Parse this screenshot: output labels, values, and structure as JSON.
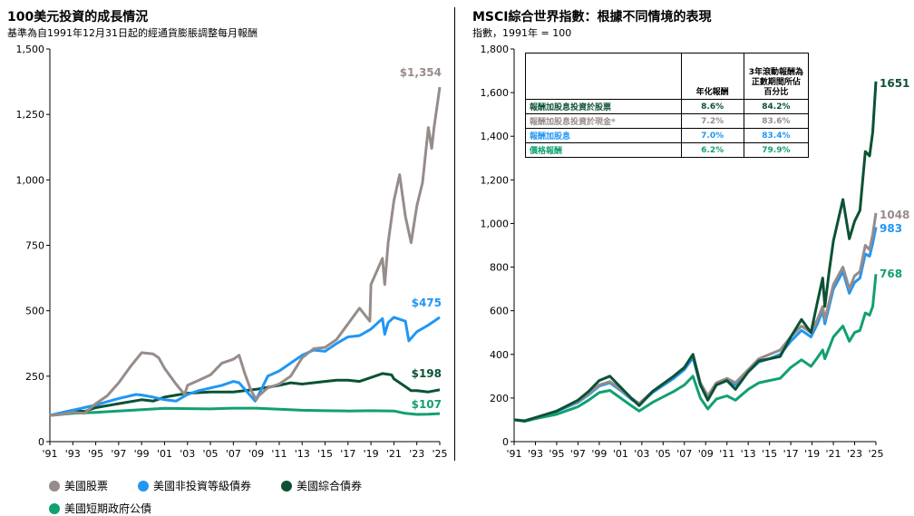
{
  "left_panel": {
    "title": "100美元投資的成長情況",
    "subtitle": "基準為自1991年12月31日起的經通貨膨脹調整每月報酬"
  },
  "right_panel": {
    "title": "MSCI綜合世界指數：根據不同情境的表現",
    "subtitle": "指數，1991年 = 100"
  },
  "legend": [
    {
      "label": "美國股票",
      "color": "#968c8a"
    },
    {
      "label": "美國非投資等級債券",
      "color": "#2196f3"
    },
    {
      "label": "美國綜合債券",
      "color": "#0b5233"
    },
    {
      "label": "美國短期政府公債",
      "color": "#12a070"
    }
  ],
  "table": {
    "headers": [
      "",
      "年化報酬",
      "3年滾動報酬為正數期間所佔百分比"
    ],
    "rows": [
      {
        "label": "報酬加股息投資於股票",
        "annual": "8.6%",
        "pct": "84.2%",
        "color": "#0b5233"
      },
      {
        "label": "報酬加股息投資於現金*",
        "annual": "7.2%",
        "pct": "83.6%",
        "color": "#968c8a"
      },
      {
        "label": "報酬加股息",
        "annual": "7.0%",
        "pct": "83.4%",
        "color": "#2196f3"
      },
      {
        "label": "價格報酬",
        "annual": "6.2%",
        "pct": "79.9%",
        "color": "#12a070"
      }
    ]
  },
  "chart_data": [
    {
      "type": "line",
      "title": "100美元投資的成長情況",
      "subtitle": "基準為自1991年12月31日起的經通貨膨脹調整每月報酬",
      "xlabel": "",
      "ylabel": "",
      "xlim": [
        1991,
        2025
      ],
      "ylim": [
        0,
        1500
      ],
      "x_ticks": [
        "'91",
        "'93",
        "'95",
        "'97",
        "'99",
        "'01",
        "'03",
        "'05",
        "'07",
        "'09",
        "'11",
        "'13",
        "'15",
        "'17",
        "'19",
        "'21",
        "'23",
        "'25"
      ],
      "y_ticks": [
        "0",
        "250",
        "500",
        "750",
        "1,000",
        "1,250",
        "1,500"
      ],
      "y_tick_values": [
        0,
        250,
        500,
        750,
        1000,
        1250,
        1500
      ],
      "grid": false,
      "legend_position": "bottom",
      "series": [
        {
          "name": "美國股票",
          "color": "#968c8a",
          "end_label": "$1,354",
          "x": [
            1991,
            1992,
            1993,
            1994,
            1995,
            1996,
            1997,
            1998,
            1999,
            2000,
            2000.5,
            2001,
            2002,
            2002.75,
            2003,
            2004,
            2005,
            2006,
            2007,
            2007.5,
            2008,
            2008.5,
            2009,
            2009.2,
            2010,
            2011,
            2012,
            2013,
            2014,
            2015,
            2016,
            2017,
            2018,
            2018.9,
            2019,
            2020,
            2020.2,
            2020.5,
            2021,
            2021.5,
            2022,
            2022.5,
            2023,
            2023.5,
            2024,
            2024.3,
            2024.5,
            2025
          ],
          "y": [
            100,
            104,
            112,
            108,
            145,
            175,
            225,
            285,
            340,
            335,
            320,
            280,
            220,
            180,
            215,
            235,
            255,
            300,
            315,
            330,
            260,
            200,
            160,
            175,
            205,
            220,
            250,
            320,
            355,
            360,
            390,
            450,
            510,
            460,
            600,
            700,
            600,
            760,
            920,
            1020,
            860,
            760,
            900,
            990,
            1200,
            1120,
            1200,
            1354
          ]
        },
        {
          "name": "美國非投資等級債券",
          "color": "#2196f3",
          "end_label": "$475",
          "x": [
            1991,
            1993,
            1995,
            1997,
            1998.5,
            1999,
            2000,
            2001,
            2002,
            2003,
            2004,
            2005,
            2006,
            2007,
            2007.5,
            2008,
            2008.9,
            2009.5,
            2010,
            2011,
            2012,
            2013,
            2014,
            2015,
            2016,
            2017,
            2018,
            2019,
            2020,
            2020.2,
            2020.5,
            2021,
            2022,
            2022.3,
            2023,
            2024,
            2025
          ],
          "y": [
            100,
            120,
            140,
            165,
            180,
            178,
            170,
            160,
            155,
            180,
            195,
            205,
            215,
            230,
            225,
            200,
            155,
            205,
            250,
            270,
            300,
            330,
            350,
            345,
            375,
            400,
            405,
            430,
            470,
            410,
            455,
            475,
            460,
            385,
            420,
            445,
            475
          ]
        },
        {
          "name": "美國綜合債券",
          "color": "#0b5233",
          "end_label": "$198",
          "x": [
            1991,
            1993,
            1994,
            1995,
            1997,
            1999,
            2000,
            2001,
            2003,
            2005,
            2007,
            2008,
            2009,
            2011,
            2012,
            2013,
            2015,
            2016,
            2017,
            2018,
            2019,
            2020,
            2020.8,
            2021,
            2022,
            2022.5,
            2023,
            2024,
            2025
          ],
          "y": [
            100,
            120,
            115,
            130,
            145,
            160,
            155,
            170,
            185,
            190,
            190,
            195,
            200,
            215,
            225,
            220,
            230,
            235,
            235,
            230,
            245,
            260,
            255,
            240,
            210,
            195,
            195,
            190,
            198
          ]
        },
        {
          "name": "美國短期政府公債",
          "color": "#12a070",
          "end_label": "$107",
          "x": [
            1991,
            1993,
            1995,
            1997,
            1999,
            2001,
            2003,
            2005,
            2007,
            2009,
            2011,
            2013,
            2015,
            2017,
            2019,
            2021,
            2022,
            2023,
            2024,
            2025
          ],
          "y": [
            100,
            108,
            112,
            117,
            122,
            127,
            126,
            125,
            128,
            128,
            124,
            120,
            118,
            117,
            118,
            117,
            108,
            104,
            105,
            107
          ]
        }
      ]
    },
    {
      "type": "line",
      "title": "MSCI綜合世界指數：根據不同情境的表現",
      "subtitle": "指數，1991年 = 100",
      "xlabel": "",
      "ylabel": "",
      "xlim": [
        1991,
        2025
      ],
      "ylim": [
        0,
        1800
      ],
      "x_ticks": [
        "'91",
        "'93",
        "'95",
        "'97",
        "'99",
        "'01",
        "'03",
        "'05",
        "'07",
        "'09",
        "'11",
        "'13",
        "'15",
        "'17",
        "'19",
        "'21",
        "'23",
        "'25"
      ],
      "y_ticks": [
        "0",
        "200",
        "400",
        "600",
        "800",
        "1,000",
        "1,200",
        "1,400",
        "1,600",
        "1,800"
      ],
      "y_tick_values": [
        0,
        200,
        400,
        600,
        800,
        1000,
        1200,
        1400,
        1600,
        1800
      ],
      "grid": false,
      "series": [
        {
          "name": "報酬加股息投資於股票",
          "color": "#0b5233",
          "end_label": "1651",
          "x": [
            1991,
            1992,
            1993,
            1995,
            1997,
            1998,
            1999,
            2000,
            2001,
            2002,
            2002.75,
            2004,
            2006,
            2007,
            2007.8,
            2008.5,
            2009.2,
            2010,
            2011,
            2011.8,
            2013,
            2014,
            2015,
            2016,
            2017,
            2018,
            2018.9,
            2019.5,
            2020,
            2020.2,
            2020.6,
            2021,
            2021.9,
            2022.5,
            2023,
            2023.5,
            2024,
            2024.4,
            2024.7,
            2025
          ],
          "y": [
            100,
            95,
            110,
            140,
            190,
            230,
            280,
            300,
            250,
            200,
            165,
            230,
            300,
            340,
            400,
            260,
            190,
            260,
            280,
            240,
            320,
            370,
            380,
            390,
            480,
            560,
            500,
            640,
            750,
            620,
            780,
            920,
            1110,
            930,
            1010,
            1060,
            1330,
            1310,
            1420,
            1651
          ]
        },
        {
          "name": "報酬加股息投資於現金*",
          "color": "#968c8a",
          "end_label": "1048",
          "x": [
            1991,
            1992,
            1993,
            1995,
            1997,
            1998,
            1999,
            2000,
            2001,
            2002,
            2002.75,
            2004,
            2006,
            2007,
            2007.8,
            2008.5,
            2009.2,
            2010,
            2011,
            2011.8,
            2013,
            2014,
            2015,
            2016,
            2017,
            2018,
            2018.9,
            2019.5,
            2020,
            2020.2,
            2020.6,
            2021,
            2021.9,
            2022.5,
            2023,
            2023.5,
            2024,
            2024.4,
            2024.7,
            2025
          ],
          "y": [
            100,
            95,
            110,
            140,
            185,
            220,
            260,
            275,
            240,
            200,
            175,
            230,
            300,
            340,
            400,
            270,
            210,
            270,
            290,
            270,
            330,
            380,
            400,
            420,
            480,
            530,
            500,
            560,
            620,
            560,
            640,
            720,
            800,
            700,
            760,
            780,
            900,
            880,
            950,
            1048
          ]
        },
        {
          "name": "報酬加股息",
          "color": "#2196f3",
          "end_label": "983",
          "x": [
            1991,
            1992,
            1993,
            1995,
            1997,
            1998,
            1999,
            2000,
            2001,
            2002,
            2002.75,
            2004,
            2006,
            2007,
            2007.8,
            2008.5,
            2009.2,
            2010,
            2011,
            2011.8,
            2013,
            2014,
            2015,
            2016,
            2017,
            2018,
            2018.9,
            2019.5,
            2020,
            2020.2,
            2020.6,
            2021,
            2021.9,
            2022.5,
            2023,
            2023.5,
            2024,
            2024.4,
            2024.7,
            2025
          ],
          "y": [
            100,
            95,
            110,
            138,
            180,
            215,
            255,
            270,
            235,
            195,
            170,
            225,
            290,
            330,
            385,
            260,
            200,
            260,
            280,
            260,
            320,
            365,
            380,
            400,
            460,
            510,
            480,
            540,
            600,
            540,
            620,
            700,
            780,
            680,
            730,
            750,
            860,
            850,
            910,
            983
          ]
        },
        {
          "name": "價格報酬",
          "color": "#12a070",
          "end_label": "768",
          "x": [
            1991,
            1992,
            1993,
            1995,
            1997,
            1998,
            1999,
            2000,
            2001,
            2002,
            2002.75,
            2004,
            2006,
            2007,
            2007.8,
            2008.5,
            2009.2,
            2010,
            2011,
            2011.8,
            2013,
            2014,
            2015,
            2016,
            2017,
            2018,
            2018.9,
            2019.5,
            2020,
            2020.2,
            2020.6,
            2021,
            2021.9,
            2022.5,
            2023,
            2023.5,
            2024,
            2024.4,
            2024.7,
            2025
          ],
          "y": [
            100,
            93,
            105,
            125,
            160,
            190,
            225,
            235,
            200,
            165,
            140,
            180,
            230,
            260,
            300,
            200,
            150,
            195,
            210,
            190,
            240,
            270,
            280,
            290,
            340,
            375,
            345,
            385,
            420,
            380,
            430,
            480,
            530,
            460,
            500,
            510,
            590,
            580,
            620,
            768
          ]
        }
      ]
    }
  ]
}
